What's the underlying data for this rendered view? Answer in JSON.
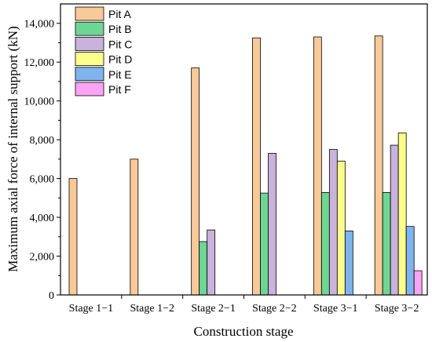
{
  "chart_data": {
    "type": "bar",
    "xlabel": "Construction stage",
    "ylabel": "Maximum axial force of internal support (kN)",
    "ylim": [
      0,
      15000
    ],
    "yticks": [
      0,
      2000,
      4000,
      6000,
      8000,
      10000,
      12000,
      14000
    ],
    "ytick_labels": [
      "0",
      "2,000",
      "4,000",
      "6,000",
      "8,000",
      "10,000",
      "12,000",
      "14,000"
    ],
    "categories": [
      "Stage 1−1",
      "Stage 1−2",
      "Stage 2−1",
      "Stage 2−2",
      "Stage 3−1",
      "Stage 3−2"
    ],
    "legend_position": "top-left",
    "series": [
      {
        "name": "Pit A",
        "color": "#F9C99A",
        "values": [
          6000,
          7000,
          11700,
          13250,
          13300,
          13350
        ]
      },
      {
        "name": "Pit B",
        "color": "#6ED693",
        "values": [
          null,
          null,
          2750,
          5250,
          5280,
          5280
        ]
      },
      {
        "name": "Pit C",
        "color": "#C9B2DC",
        "values": [
          null,
          null,
          3350,
          7300,
          7500,
          7720
        ]
      },
      {
        "name": "Pit D",
        "color": "#FDFD8C",
        "values": [
          null,
          null,
          null,
          null,
          6900,
          8350
        ]
      },
      {
        "name": "Pit E",
        "color": "#7FB4EE",
        "values": [
          null,
          null,
          null,
          null,
          3300,
          3530
        ]
      },
      {
        "name": "Pit F",
        "color": "#FBA3F4",
        "values": [
          null,
          null,
          null,
          null,
          null,
          1250
        ]
      }
    ]
  }
}
